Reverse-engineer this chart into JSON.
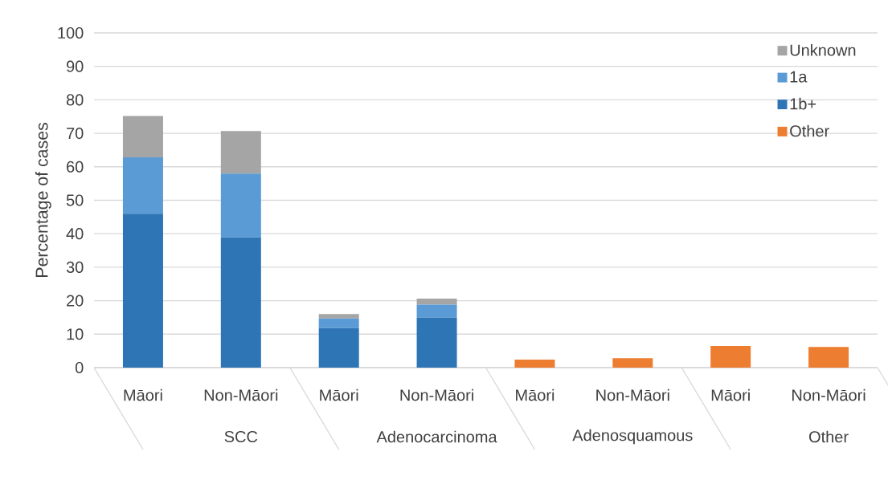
{
  "chart_data": {
    "type": "bar",
    "stacked": true,
    "ylabel": "Percentage of cases",
    "categories": [
      "Māori",
      "Non-Māori",
      "Māori",
      "Non-Māori",
      "Māori",
      "Non-Māori",
      "Māori",
      "Non-Māori"
    ],
    "annotations": [
      "SCC",
      "Adenocarcinoma",
      "Adenosquamous",
      "Other"
    ],
    "series": [
      {
        "name": "Other",
        "color": "#ed7d31",
        "values": [
          null,
          null,
          null,
          null,
          2.4,
          2.8,
          6.5,
          6.2
        ]
      },
      {
        "name": "1b+",
        "color": "#2e75b6",
        "values": [
          46,
          38.9,
          11.8,
          15,
          null,
          null,
          null,
          null
        ]
      },
      {
        "name": "1a",
        "color": "#5b9bd5",
        "values": [
          16.8,
          19.1,
          2.9,
          3.8,
          null,
          null,
          null,
          null
        ]
      },
      {
        "name": "Unknown",
        "color": "#a5a5a5",
        "values": [
          12.4,
          12.7,
          1.3,
          1.8,
          null,
          null,
          null,
          null
        ]
      }
    ],
    "ylim": [
      0,
      100
    ],
    "yticks": [
      0,
      10,
      20,
      30,
      40,
      50,
      60,
      70,
      80,
      90,
      100
    ],
    "grid": "y",
    "legend": "top right"
  }
}
